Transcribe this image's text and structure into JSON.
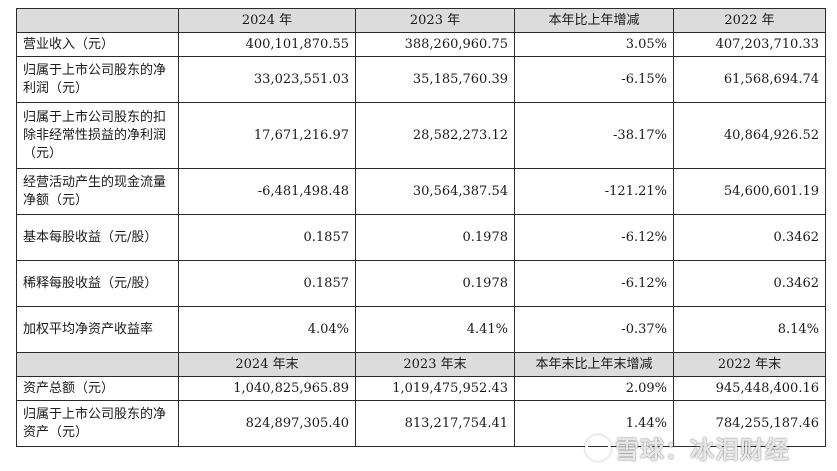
{
  "header1": [
    "",
    "2024 年",
    "2023 年",
    "本年比上年增减",
    "2022 年"
  ],
  "header2": [
    "",
    "2024 年末",
    "2023 年末",
    "本年末比上年末增减",
    "2022 年末"
  ],
  "rows1": [
    {
      "label": "营业收入（元）",
      "v2024": "400,101,870.55",
      "v2023": "388,260,960.75",
      "change": "3.05%",
      "v2022": "407,203,710.33"
    },
    {
      "label": "归属于上市公司股东的净利润（元）",
      "v2024": "33,023,551.03",
      "v2023": "35,185,760.39",
      "change": "-6.15%",
      "v2022": "61,568,694.74"
    },
    {
      "label": "归属于上市公司股东的扣除非经常性损益的净利润（元）",
      "v2024": "17,671,216.97",
      "v2023": "28,582,273.12",
      "change": "-38.17%",
      "v2022": "40,864,926.52"
    },
    {
      "label": "经营活动产生的现金流量净额（元）",
      "v2024": "-6,481,498.48",
      "v2023": "30,564,387.54",
      "change": "-121.21%",
      "v2022": "54,600,601.19"
    },
    {
      "label": "基本每股收益（元/股）",
      "v2024": "0.1857",
      "v2023": "0.1978",
      "change": "-6.12%",
      "v2022": "0.3462"
    },
    {
      "label": "稀释每股收益（元/股）",
      "v2024": "0.1857",
      "v2023": "0.1978",
      "change": "-6.12%",
      "v2022": "0.3462"
    },
    {
      "label": "加权平均净资产收益率",
      "v2024": "4.04%",
      "v2023": "4.41%",
      "change": "-0.37%",
      "v2022": "8.14%"
    }
  ],
  "rows2": [
    {
      "label": "资产总额（元）",
      "v2024": "1,040,825,965.89",
      "v2023": "1,019,475,952.43",
      "change": "2.09%",
      "v2022": "945,448,400.16"
    },
    {
      "label": "归属于上市公司股东的净资产（元）",
      "v2024": "824,897,305.40",
      "v2023": "813,217,754.41",
      "change": "1.44%",
      "v2022": "784,255,187.46"
    }
  ],
  "watermark": "雪球：冰泪财经"
}
